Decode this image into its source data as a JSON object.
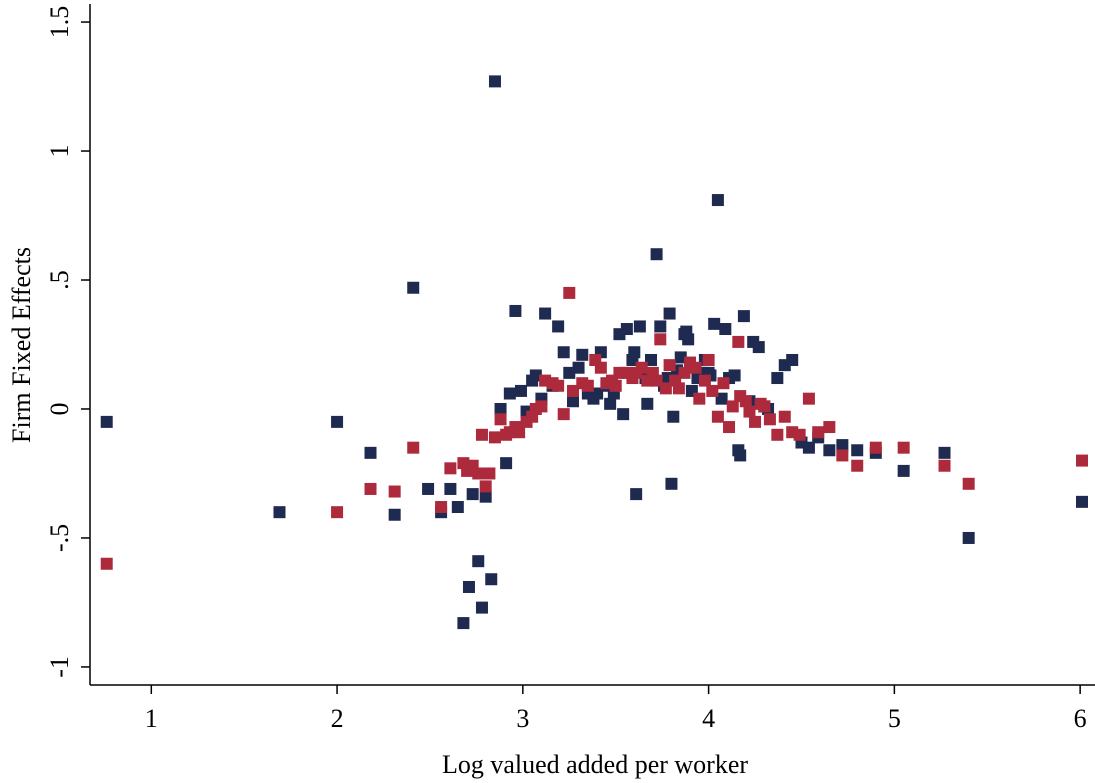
{
  "chart_data": {
    "type": "scatter",
    "x_label": "Log valued added per worker",
    "y_label": "Firm Fixed Effects",
    "xlim": [
      0.67,
      6.08
    ],
    "ylim": [
      -1.07,
      1.57
    ],
    "xticks": [
      1,
      2,
      3,
      4,
      5,
      6
    ],
    "yticks": [
      -1,
      {
        "value": -0.5,
        "label": "-.5"
      },
      0,
      {
        "value": 0.5,
        "label": ".5"
      },
      1,
      1.5
    ],
    "grid": false,
    "series": [
      {
        "color": "#1f2a50",
        "x": [
          0.76,
          1.69,
          2.0,
          2.18,
          2.31,
          2.41,
          2.49,
          2.56,
          2.61,
          2.65,
          2.68,
          2.71,
          2.73,
          2.76,
          2.78,
          2.8,
          2.83,
          2.85,
          2.88,
          2.91,
          2.93,
          2.96,
          2.99,
          3.02,
          3.05,
          3.07,
          3.1,
          3.12,
          3.16,
          3.19,
          3.22,
          3.25,
          3.27,
          3.3,
          3.32,
          3.35,
          3.38,
          3.4,
          3.42,
          3.45,
          3.47,
          3.49,
          3.52,
          3.54,
          3.56,
          3.59,
          3.6,
          3.61,
          3.63,
          3.66,
          3.67,
          3.69,
          3.72,
          3.74,
          3.76,
          3.78,
          3.79,
          3.8,
          3.81,
          3.83,
          3.85,
          3.87,
          3.88,
          3.89,
          3.91,
          3.94,
          3.96,
          3.98,
          4.0,
          4.01,
          4.03,
          4.05,
          4.07,
          4.09,
          4.11,
          4.14,
          4.16,
          4.17,
          4.19,
          4.22,
          4.24,
          4.27,
          4.3,
          4.32,
          4.37,
          4.41,
          4.45,
          4.5,
          4.54,
          4.59,
          4.65,
          4.72,
          4.8,
          4.9,
          5.05,
          5.27,
          5.4,
          6.01
        ],
        "values": [
          -0.05,
          -0.4,
          -0.05,
          -0.17,
          -0.41,
          0.47,
          -0.31,
          -0.4,
          -0.31,
          -0.38,
          -0.83,
          -0.69,
          -0.33,
          -0.59,
          -0.77,
          -0.34,
          -0.66,
          1.27,
          0.0,
          -0.21,
          0.06,
          0.38,
          0.07,
          -0.01,
          0.11,
          0.13,
          0.04,
          0.37,
          0.09,
          0.32,
          0.22,
          0.14,
          0.03,
          0.16,
          0.21,
          0.06,
          0.04,
          0.06,
          0.22,
          0.09,
          0.02,
          0.06,
          0.29,
          -0.02,
          0.31,
          0.19,
          0.22,
          -0.33,
          0.32,
          0.12,
          0.02,
          0.19,
          0.6,
          0.32,
          0.09,
          0.12,
          0.37,
          -0.29,
          -0.03,
          0.15,
          0.2,
          0.29,
          0.3,
          0.27,
          0.07,
          0.12,
          0.14,
          0.19,
          0.14,
          0.13,
          0.33,
          0.81,
          0.04,
          0.31,
          0.12,
          0.13,
          -0.16,
          -0.18,
          0.36,
          0.03,
          0.26,
          0.24,
          0.01,
          0.0,
          0.12,
          0.17,
          0.19,
          -0.13,
          -0.15,
          -0.11,
          -0.16,
          -0.14,
          -0.16,
          -0.17,
          -0.24,
          -0.17,
          -0.5,
          -0.36
        ]
      },
      {
        "color": "#ad2a3c",
        "x": [
          0.76,
          2.0,
          2.18,
          2.31,
          2.41,
          2.56,
          2.61,
          2.68,
          2.7,
          2.73,
          2.76,
          2.78,
          2.8,
          2.82,
          2.85,
          2.88,
          2.91,
          2.93,
          2.96,
          2.98,
          3.02,
          3.05,
          3.07,
          3.1,
          3.12,
          3.16,
          3.19,
          3.22,
          3.25,
          3.27,
          3.32,
          3.35,
          3.39,
          3.42,
          3.45,
          3.48,
          3.5,
          3.52,
          3.56,
          3.59,
          3.61,
          3.64,
          3.67,
          3.7,
          3.72,
          3.74,
          3.77,
          3.79,
          3.82,
          3.84,
          3.87,
          3.9,
          3.93,
          3.95,
          3.98,
          4.0,
          4.02,
          4.05,
          4.08,
          4.11,
          4.13,
          4.16,
          4.17,
          4.2,
          4.22,
          4.25,
          4.28,
          4.3,
          4.33,
          4.37,
          4.41,
          4.45,
          4.49,
          4.54,
          4.59,
          4.65,
          4.72,
          4.8,
          4.9,
          5.05,
          5.27,
          5.4,
          6.01
        ],
        "values": [
          -0.6,
          -0.4,
          -0.31,
          -0.32,
          -0.15,
          -0.38,
          -0.23,
          -0.21,
          -0.24,
          -0.22,
          -0.25,
          -0.1,
          -0.3,
          -0.25,
          -0.11,
          -0.04,
          -0.1,
          -0.09,
          -0.07,
          -0.09,
          -0.05,
          -0.03,
          0.0,
          0.01,
          0.11,
          0.1,
          0.09,
          -0.02,
          0.45,
          0.07,
          0.1,
          0.09,
          0.19,
          0.16,
          0.1,
          0.11,
          0.09,
          0.14,
          0.14,
          0.12,
          0.14,
          0.16,
          0.11,
          0.14,
          0.11,
          0.27,
          0.08,
          0.17,
          0.11,
          0.08,
          0.14,
          0.18,
          0.16,
          0.04,
          0.11,
          0.19,
          0.07,
          -0.03,
          0.1,
          -0.07,
          0.01,
          0.26,
          0.05,
          0.03,
          -0.01,
          -0.05,
          0.02,
          0.01,
          -0.04,
          -0.1,
          -0.03,
          -0.09,
          -0.1,
          0.04,
          -0.09,
          -0.07,
          -0.18,
          -0.22,
          -0.15,
          -0.15,
          -0.22,
          -0.29,
          -0.2
        ]
      }
    ]
  }
}
